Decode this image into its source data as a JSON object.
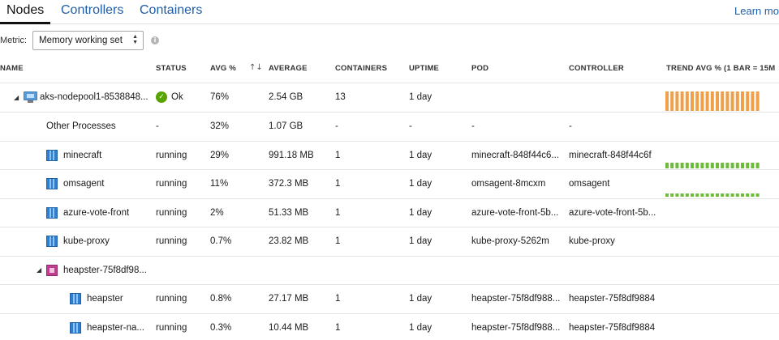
{
  "tabs": [
    {
      "label": "Nodes",
      "active": true
    },
    {
      "label": "Controllers",
      "active": false
    },
    {
      "label": "Containers",
      "active": false
    }
  ],
  "learn_more": "Learn more",
  "metric": {
    "label": "Metric:",
    "selected": "Memory working set"
  },
  "columns": {
    "name": "NAME",
    "status": "STATUS",
    "avg": "AVG %",
    "average": "AVERAGE",
    "containers": "CONTAINERS",
    "uptime": "UPTIME",
    "pod": "POD",
    "controller": "CONTROLLER",
    "trend": "TREND AVG % (1 BAR = 15M"
  },
  "rows": [
    {
      "name": "aks-nodepool1-8538848...",
      "status": "Ok",
      "avg": "76%",
      "average": "2.54 GB",
      "containers": "13",
      "uptime": "1 day",
      "pod": "",
      "controller": ""
    },
    {
      "name": "Other Processes",
      "status": "-",
      "avg": "32%",
      "average": "1.07 GB",
      "containers": "-",
      "uptime": "-",
      "pod": "-",
      "controller": "-"
    },
    {
      "name": "minecraft",
      "status": "running",
      "avg": "29%",
      "average": "991.18 MB",
      "containers": "1",
      "uptime": "1 day",
      "pod": "minecraft-848f44c6...",
      "controller": "minecraft-848f44c6f"
    },
    {
      "name": "omsagent",
      "status": "running",
      "avg": "11%",
      "average": "372.3 MB",
      "containers": "1",
      "uptime": "1 day",
      "pod": "omsagent-8mcxm",
      "controller": "omsagent"
    },
    {
      "name": "azure-vote-front",
      "status": "running",
      "avg": "2%",
      "average": "51.33 MB",
      "containers": "1",
      "uptime": "1 day",
      "pod": "azure-vote-front-5b...",
      "controller": "azure-vote-front-5b..."
    },
    {
      "name": "kube-proxy",
      "status": "running",
      "avg": "0.7%",
      "average": "23.82 MB",
      "containers": "1",
      "uptime": "1 day",
      "pod": "kube-proxy-5262m",
      "controller": "kube-proxy"
    },
    {
      "name": "heapster-75f8df98...",
      "status": "",
      "avg": "",
      "average": "",
      "containers": "",
      "uptime": "",
      "pod": "",
      "controller": ""
    },
    {
      "name": "heapster",
      "status": "running",
      "avg": "0.8%",
      "average": "27.17 MB",
      "containers": "1",
      "uptime": "1 day",
      "pod": "heapster-75f8df988...",
      "controller": "heapster-75f8df9884"
    },
    {
      "name": "heapster-na...",
      "status": "running",
      "avg": "0.3%",
      "average": "10.44 MB",
      "containers": "1",
      "uptime": "1 day",
      "pod": "heapster-75f8df988...",
      "controller": "heapster-75f8df9884"
    }
  ],
  "trend": {
    "node": {
      "color": "#f0a04b",
      "level": 1.0,
      "bars": 19
    },
    "minecraft": {
      "color": "#6dbb3a",
      "level": 0.35,
      "bars": 19
    },
    "omsagent": {
      "color": "#6dbb3a",
      "level": 0.2,
      "bars": 19
    }
  }
}
